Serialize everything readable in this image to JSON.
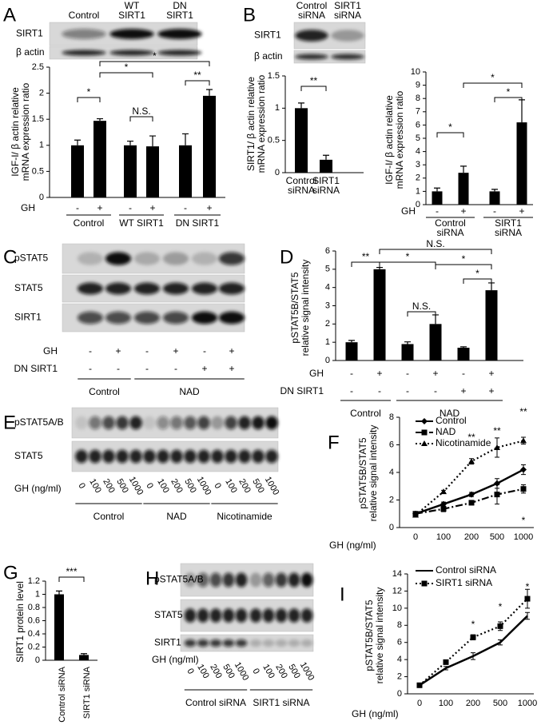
{
  "panel_labels": [
    "A",
    "B",
    "C",
    "D",
    "E",
    "F",
    "G",
    "H",
    "I"
  ],
  "blots": [
    {
      "columns": [
        [
          "Control"
        ],
        [
          "WT",
          "SIRT1"
        ],
        [
          "DN",
          "SIRT1"
        ]
      ],
      "rows": [
        "SIRT1",
        "β actin"
      ]
    },
    {
      "columns": [
        [
          "Control",
          "siRNA"
        ],
        [
          "SIRT1",
          "siRNA"
        ]
      ],
      "rows": [
        "SIRT1",
        "β actin"
      ]
    },
    {
      "rows": [
        "pSTAT5",
        "STAT5",
        "SIRT1"
      ],
      "conditions": [
        {
          "name": "GH",
          "values": [
            "-",
            "+",
            "-",
            "+",
            "-",
            "+"
          ]
        },
        {
          "name": "DN SIRT1",
          "values": [
            "-",
            "-",
            "-",
            "-",
            "+",
            "+"
          ]
        }
      ],
      "groups": [
        "Control",
        "NAD"
      ]
    },
    {
      "rows": [
        "pSTAT5A/B",
        "STAT5"
      ],
      "lane_label": "GH (ng/ml)",
      "lanes": [
        "0",
        "100",
        "200",
        "500",
        "1000",
        "0",
        "100",
        "200",
        "500",
        "1000",
        "0",
        "100",
        "200",
        "500",
        "1000"
      ],
      "groups": [
        "Control",
        "NAD",
        "Nicotinamide"
      ]
    },
    {
      "rows": [
        "pSTAT5A/B",
        "STAT5",
        "SIRT1"
      ],
      "lane_label": "GH (ng/ml)",
      "lanes": [
        "0",
        "100",
        "200",
        "500",
        "1000",
        "0",
        "100",
        "200",
        "500",
        "1000"
      ],
      "groups": [
        "Control siRNA",
        "SIRT1 siRNA"
      ]
    }
  ],
  "chart_data": [
    {
      "type": "bar",
      "ylabel": [
        "IGF-I/ β actin relative",
        "mRNA expression ratio"
      ],
      "values": [
        1.0,
        1.47,
        1.0,
        0.98,
        1.0,
        1.95
      ],
      "errors": [
        0.1,
        0.04,
        0.08,
        0.2,
        0.22,
        0.12
      ],
      "color": "#000000",
      "ylim": [
        0,
        2.5
      ],
      "yticks": [
        0,
        0.5,
        1,
        1.5,
        2,
        2.5
      ],
      "rows": [
        {
          "name": "GH",
          "values": [
            "-",
            "+",
            "-",
            "+",
            "-",
            "+"
          ]
        }
      ],
      "groups": [
        "Control",
        "WT SIRT1",
        "DN SIRT1"
      ],
      "annotations": [
        "*",
        "N.S.",
        "**",
        "*",
        "*"
      ]
    },
    {
      "type": "bar",
      "ylabel": [
        "SIRT1/ β actin relative",
        "mRNA expression ratio"
      ],
      "categories": [
        [
          "Control",
          "siRNA"
        ],
        [
          "SIRT1",
          "siRNA"
        ]
      ],
      "values": [
        1.0,
        0.2
      ],
      "errors": [
        0.08,
        0.07
      ],
      "color": "#000000",
      "ylim": [
        0,
        1.5
      ],
      "yticks": [
        0,
        0.5,
        1,
        1.5
      ],
      "annotations": [
        "**"
      ]
    },
    {
      "type": "bar",
      "ylabel": [
        "IGF-I/ β actin relative",
        "mRNA expression ratio"
      ],
      "values": [
        1.0,
        2.4,
        1.0,
        6.2
      ],
      "errors": [
        0.25,
        0.5,
        0.15,
        1.7
      ],
      "color": "#000000",
      "ylim": [
        0,
        10
      ],
      "yticks": [
        0,
        1,
        2,
        3,
        4,
        5,
        6,
        7,
        8,
        9,
        10
      ],
      "rows": [
        {
          "name": "GH",
          "values": [
            "-",
            "+",
            "-",
            "+"
          ]
        }
      ],
      "groups": [
        [
          "Control",
          "siRNA"
        ],
        [
          "SIRT1",
          "siRNA"
        ]
      ],
      "annotations": [
        "*",
        "*",
        "*"
      ]
    },
    {
      "type": "bar",
      "ylabel": [
        "pSTAT5B/STAT5",
        "relative signal intensity"
      ],
      "values": [
        1.0,
        5.0,
        0.9,
        2.0,
        0.7,
        3.85
      ],
      "errors": [
        0.1,
        0.1,
        0.12,
        0.5,
        0.05,
        0.4
      ],
      "color": "#000000",
      "ylim": [
        0,
        6
      ],
      "yticks": [
        0,
        1,
        2,
        3,
        4,
        5,
        6
      ],
      "rows": [
        {
          "name": "GH",
          "values": [
            "-",
            "+",
            "-",
            "+",
            "-",
            "+"
          ]
        },
        {
          "name": "DN SIRT1",
          "values": [
            "-",
            "-",
            "-",
            "-",
            "+",
            "+"
          ]
        }
      ],
      "groups": [
        "Control",
        "NAD"
      ],
      "annotations": [
        "**",
        "*",
        "N.S.",
        "*",
        "*",
        "N.S."
      ]
    },
    {
      "type": "line",
      "ylabel": [
        "pSTAT5B/STAT5",
        "relative signal intensity"
      ],
      "xlabel": "GH (ng/ml)",
      "categories": [
        "0",
        "100",
        "200",
        "500",
        "1000"
      ],
      "series": [
        {
          "name": "Control",
          "color": "#000000",
          "dash": "solid",
          "marker": "diamond",
          "values": [
            1.0,
            1.7,
            2.4,
            3.2,
            4.2
          ],
          "errors": [
            0.15,
            0.15,
            0.15,
            0.35,
            0.35
          ]
        },
        {
          "name": "NAD",
          "color": "#000000",
          "dash": "dashdot",
          "marker": "square",
          "values": [
            1.0,
            1.35,
            1.8,
            2.4,
            2.8
          ],
          "errors": [
            0.1,
            0.2,
            0.15,
            0.7,
            0.3
          ]
        },
        {
          "name": "Nicotinamide",
          "color": "#000000",
          "dash": "dotted",
          "marker": "triangle",
          "values": [
            0.9,
            2.6,
            4.8,
            5.8,
            6.3
          ],
          "errors": [
            0.1,
            0.1,
            0.2,
            0.7,
            0.25
          ]
        }
      ],
      "ylim": [
        0,
        8
      ],
      "yticks": [
        0,
        2,
        4,
        6,
        8
      ],
      "annotations": [
        "**",
        "**",
        "**",
        "*"
      ]
    },
    {
      "type": "bar",
      "ylabel": [
        "SIRT1 protein level"
      ],
      "categories": [
        [
          "Control siRNA"
        ],
        [
          "SIRT1 siRNA"
        ]
      ],
      "values": [
        1.0,
        0.08
      ],
      "errors": [
        0.05,
        0.02
      ],
      "color": "#000000",
      "ylim": [
        0,
        1.2
      ],
      "yticks": [
        0,
        0.2,
        0.4,
        0.6,
        0.8,
        1,
        1.2
      ],
      "annotations": [
        "***"
      ]
    },
    {
      "type": "line",
      "ylabel": [
        "pSTAT5B/STAT5",
        "relative signal intensity"
      ],
      "xlabel": "GH (ng/ml)",
      "categories": [
        "0",
        "100",
        "200",
        "500",
        "1000"
      ],
      "series": [
        {
          "name": "Control siRNA",
          "color": "#000000",
          "dash": "solid",
          "values": [
            1.0,
            3.0,
            4.4,
            6.0,
            9.1
          ],
          "errors": [
            0.1,
            0.2,
            0.4,
            0.3,
            0.4
          ]
        },
        {
          "name": "SIRT1 siRNA",
          "color": "#000000",
          "dash": "dotted",
          "marker": "square",
          "values": [
            1.0,
            3.7,
            6.6,
            7.9,
            11.1
          ],
          "errors": [
            0.1,
            0.2,
            0.3,
            0.5,
            1.1
          ]
        }
      ],
      "ylim": [
        0,
        14
      ],
      "yticks": [
        0,
        2,
        4,
        6,
        8,
        10,
        12,
        14
      ],
      "annotations": [
        "*",
        "*",
        "*"
      ]
    }
  ]
}
